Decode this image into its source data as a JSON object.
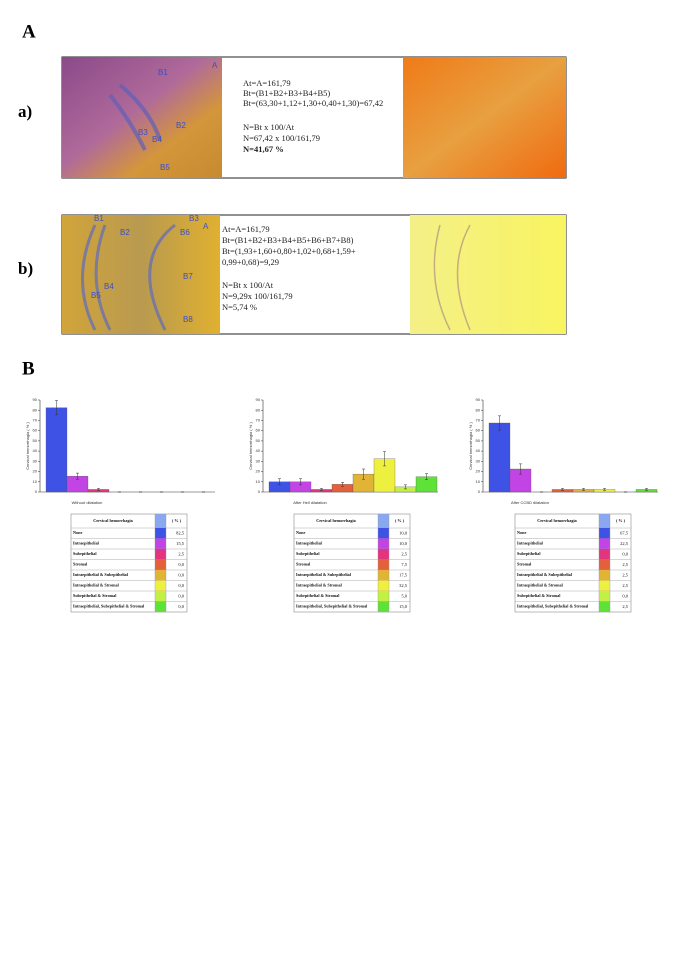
{
  "labels": {
    "panel_a": "A",
    "panel_b": "B",
    "row_a": "a)",
    "row_b": "b)"
  },
  "panel_a": {
    "a": {
      "image_labels": [
        "B1",
        "B2",
        "B3",
        "B4",
        "B5",
        "A"
      ],
      "lines": [
        "At=A=161,79",
        "Bt=(B1+B2+B3+B4+B5)",
        "Bt=(63,30+1,12+1,30+0,40+1,30)=67,42",
        "N=Bt x 100/At",
        "N=67,42 x 100/161,79",
        "N=41,67 %"
      ]
    },
    "b": {
      "image_labels": [
        "B1",
        "B2",
        "B3",
        "B4",
        "B5",
        "B6",
        "B7",
        "B8",
        "A"
      ],
      "lines": [
        "At=A=161,79",
        "Bt=(B1+B2+B3+B4+B5+B6+B7+B8)",
        "Bt=(1,93+1,60+0,80+1,02+0,68+1,59+",
        "0,99+0,68)=9,29",
        "N=Bt x 100/At",
        "N=9,29x 100/161,79",
        "N=5,74 %"
      ]
    }
  },
  "chart_data": [
    {
      "type": "bar",
      "x_label": "Without dilatation",
      "y_label": "Cervical hemorrhagia ( % )",
      "values": [
        82.5,
        15.5,
        2.5,
        0,
        0,
        0,
        0,
        0
      ],
      "errors": [
        7,
        3,
        1,
        0,
        0,
        0,
        0,
        0
      ],
      "colors": [
        "#3f52e6",
        "#c244e4",
        "#e2357e",
        "#e4603c",
        "#e2b436",
        "#eef040",
        "#c2f044",
        "#5ee238"
      ],
      "ylim": [
        0,
        90
      ],
      "yticks": [
        0,
        10,
        20,
        30,
        40,
        50,
        60,
        70,
        80,
        90
      ]
    },
    {
      "type": "bar",
      "x_label": "After Hell dilatation",
      "y_label": "Cervical hemorrhagia ( % )",
      "values": [
        10,
        10,
        2.5,
        7.5,
        17.5,
        32.5,
        5,
        15
      ],
      "errors": [
        3,
        3,
        1,
        2,
        5,
        7,
        2,
        3
      ],
      "colors": [
        "#3f52e6",
        "#c244e4",
        "#e2357e",
        "#e4603c",
        "#e2b436",
        "#eef040",
        "#c2f044",
        "#5ee238"
      ],
      "ylim": [
        0,
        90
      ],
      "yticks": [
        0,
        10,
        20,
        30,
        40,
        50,
        60,
        70,
        80,
        90
      ]
    },
    {
      "type": "bar",
      "x_label": "After CCBD dilatation",
      "y_label": "Cervical hemorrhagia ( % )",
      "values": [
        67.5,
        22.5,
        0,
        2.5,
        2.5,
        2.5,
        0,
        2.5
      ],
      "errors": [
        7,
        5,
        0,
        1,
        1,
        1,
        0,
        1
      ],
      "colors": [
        "#3f52e6",
        "#c244e4",
        "#e2357e",
        "#e4603c",
        "#e2b436",
        "#eef040",
        "#c2f044",
        "#5ee238"
      ],
      "ylim": [
        0,
        90
      ],
      "yticks": [
        0,
        10,
        20,
        30,
        40,
        50,
        60,
        70,
        80,
        90
      ]
    }
  ],
  "tables": [
    {
      "header": [
        "Cervical hemorrhagia",
        "( % )"
      ],
      "rows": [
        [
          "None",
          "82,5"
        ],
        [
          "Intraepithelial",
          "15,5"
        ],
        [
          "Subepithelial",
          "2,5"
        ],
        [
          "Stromal",
          "0,0"
        ],
        [
          "Intraepithelial & Subepithelial",
          "0,0"
        ],
        [
          "Intraepithelial & Stromal",
          "0,0"
        ],
        [
          "Subepithelial & Stromal",
          "0,0"
        ],
        [
          "Intraepithelial, Subepithelial & Stromal",
          "0,0"
        ]
      ]
    },
    {
      "header": [
        "Cervical hemorrhagia",
        "( % )"
      ],
      "rows": [
        [
          "None",
          "10,0"
        ],
        [
          "Intraepithelial",
          "10,0"
        ],
        [
          "Subepithelial",
          "2,5"
        ],
        [
          "Stromal",
          "7,5"
        ],
        [
          "Intraepithelial & Subepithelial",
          "17,5"
        ],
        [
          "Intraepithelial & Stromal",
          "32,5"
        ],
        [
          "Subepithelial & Stromal",
          "5,0"
        ],
        [
          "Intraepithelial, Subepithelial & Stromal",
          "15,0"
        ]
      ]
    },
    {
      "header": [
        "Cervical hemorrhagia",
        "( % )"
      ],
      "rows": [
        [
          "None",
          "67,5"
        ],
        [
          "Intraepithelial",
          "22,5"
        ],
        [
          "Subepithelial",
          "0,0"
        ],
        [
          "Stromal",
          "2,5"
        ],
        [
          "Intraepithelial & Subepithelial",
          "2,5"
        ],
        [
          "Intraepithelial & Stromal",
          "2,5"
        ],
        [
          "Subepithelial & Stromal",
          "0,0"
        ],
        [
          "Intraepithelial, Subepithelial & Stromal",
          "2,5"
        ]
      ]
    }
  ]
}
